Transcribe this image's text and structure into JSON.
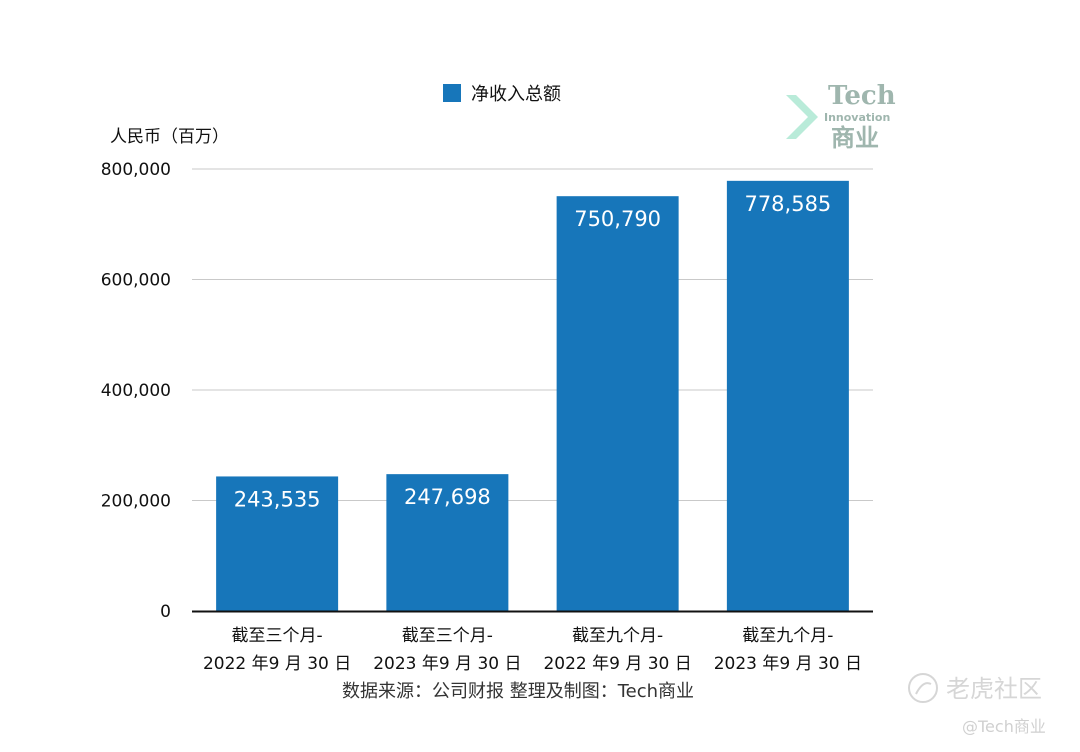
{
  "chart_data": {
    "type": "bar",
    "legend": "净收入总额",
    "ylabel": "人民币（百万）",
    "yticks": [
      "800,000",
      "600,000",
      "400,000",
      "200,000",
      "0"
    ],
    "ylim": [
      0,
      800000
    ],
    "grid": true,
    "legend_position": "top-center",
    "categories": [
      [
        "截至三个月-",
        "2022 年9 月 30 日"
      ],
      [
        "截至三个月-",
        "2023 年9 月 30 日"
      ],
      [
        "截至九个月-",
        "2022 年9 月 30 日"
      ],
      [
        "截至九个月-",
        "2023 年9 月 30 日"
      ]
    ],
    "values": [
      243535,
      247698,
      750790,
      778585
    ],
    "value_labels": [
      "243,535",
      "247,698",
      "750,790",
      "778,585"
    ],
    "bar_color": "#1776ba"
  },
  "source": "数据来源：公司财报 整理及制图：Tech商业",
  "logo": {
    "line1": "Tech",
    "line2": "Innovation",
    "line3": "商业"
  },
  "watermark": {
    "brand": "老虎社区",
    "handle": "@Tech商业"
  }
}
